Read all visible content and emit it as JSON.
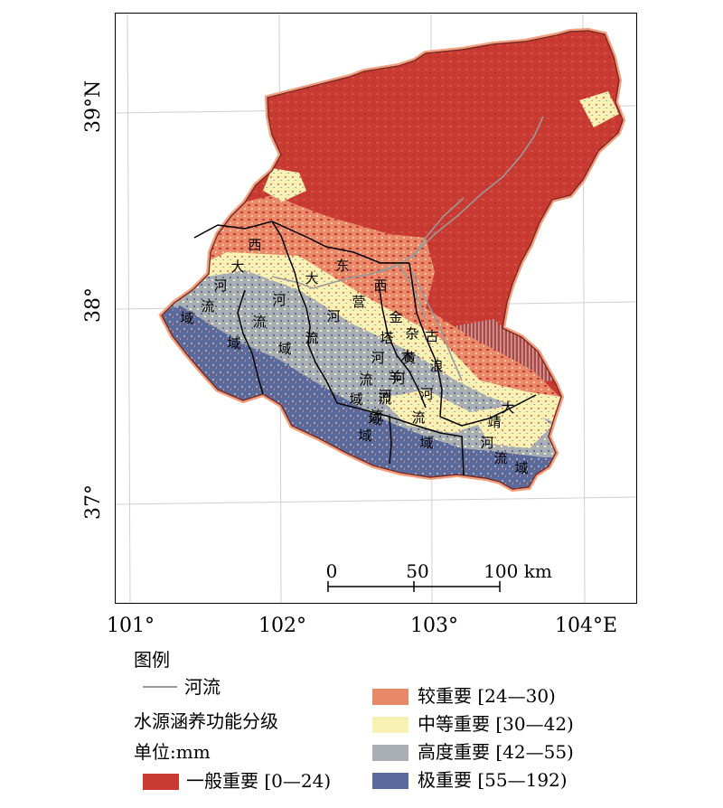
{
  "map": {
    "latitude_labels": [
      "39°N",
      "38°",
      "37°"
    ],
    "longitude_labels": [
      "101°",
      "102°",
      "103°",
      "104°E"
    ],
    "scale_bar": {
      "ticks": [
        "0",
        "50",
        "100 km"
      ]
    },
    "basin_labels": [
      [
        "西",
        "大",
        "河",
        "流",
        "域"
      ],
      [
        "东",
        "大",
        "河",
        "流",
        "域"
      ],
      [
        "西",
        "营",
        "河",
        "流",
        "域"
      ],
      [
        "金",
        "塔",
        "河",
        "流",
        "域"
      ],
      [
        "杂",
        "木",
        "河",
        "流",
        "域"
      ],
      [
        "黄",
        "羊",
        "河",
        "流",
        "域"
      ],
      [
        "古",
        "浪",
        "河",
        "流",
        "域"
      ],
      [
        "大",
        "靖",
        "河",
        "流",
        "域"
      ]
    ]
  },
  "legend": {
    "title": "图例",
    "river_label": "河流",
    "subtitle": "水源涵养功能分级",
    "unit": "单位:mm",
    "classes": [
      {
        "label": "一般重要 [0—24)",
        "color": "#c83a32",
        "range": [
          0,
          24
        ]
      },
      {
        "label": "较重要 [24—30)",
        "color": "#e8896a",
        "range": [
          24,
          30
        ]
      },
      {
        "label": "中等重要 [30—42)",
        "color": "#f7f1b4",
        "range": [
          30,
          42
        ]
      },
      {
        "label": "高度重要 [42—55)",
        "color": "#a8aeb4",
        "range": [
          42,
          55
        ]
      },
      {
        "label": "极重要 [55—192)",
        "color": "#5b6a9d",
        "range": [
          55,
          192
        ]
      }
    ]
  },
  "colors": {
    "river": "#9a9a9a",
    "boundary": "#000000",
    "outline_halo": "#f2a080",
    "graticule": "#cfcfcf"
  }
}
